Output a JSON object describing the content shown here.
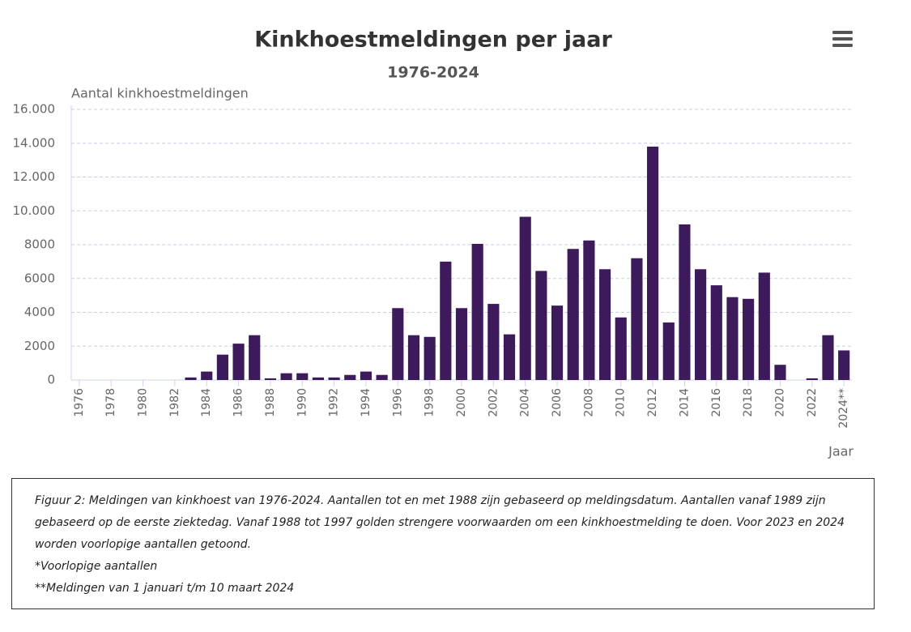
{
  "chart_data": {
    "type": "bar",
    "title": "Kinkhoestmeldingen per jaar",
    "subtitle": "1976-2024",
    "y_label": "Aantal kinkhoestmeldingen",
    "x_label": "Jaar",
    "categories": [
      "1976",
      null,
      "1978",
      null,
      "1980",
      null,
      "1982",
      null,
      "1984",
      null,
      "1986",
      null,
      "1988",
      null,
      "1990",
      null,
      "1992",
      null,
      "1994",
      null,
      "1996",
      null,
      "1998",
      null,
      "2000",
      null,
      "2002",
      null,
      "2004",
      null,
      "2006",
      null,
      "2008",
      null,
      "2010",
      null,
      "2012",
      null,
      "2014",
      null,
      "2016",
      null,
      "2018",
      null,
      "2020",
      null,
      "2022",
      null,
      "2024**"
    ],
    "values": [
      0,
      0,
      0,
      0,
      0,
      0,
      0,
      150,
      500,
      1500,
      2150,
      2650,
      100,
      400,
      400,
      150,
      150,
      300,
      500,
      300,
      4250,
      2650,
      2550,
      7000,
      4250,
      8050,
      4500,
      2700,
      9650,
      6450,
      4400,
      7750,
      8250,
      6550,
      3700,
      7200,
      13800,
      3400,
      9200,
      6550,
      5600,
      4900,
      4800,
      6350,
      900,
      0,
      100,
      2650,
      1750
    ],
    "color": "#3d1a5b",
    "ylim": [
      0,
      16000
    ],
    "yticks": [
      0,
      2000,
      4000,
      6000,
      8000,
      {
        "value": 10000,
        "label": "10.000"
      },
      {
        "value": 12000,
        "label": "12.000"
      },
      {
        "value": 14000,
        "label": "14.000"
      },
      {
        "value": 16000,
        "label": "16.000"
      }
    ],
    "grid": true
  },
  "caption": [
    "Figuur 2: Meldingen van kinkhoest van 1976-2024. Aantallen tot en met 1988 zijn gebaseerd op meldingsdatum. Aantallen vanaf 1989 zijn gebaseerd op de eerste ziektedag. Vanaf 1988 tot 1997 golden strengere voorwaarden om een kinkhoestmelding te doen. Voor 2023 en 2024 worden voorlopige aantallen getoond.",
    "*Voorlopige aantallen",
    "**Meldingen van 1 januari t/m 10 maart 2024"
  ]
}
